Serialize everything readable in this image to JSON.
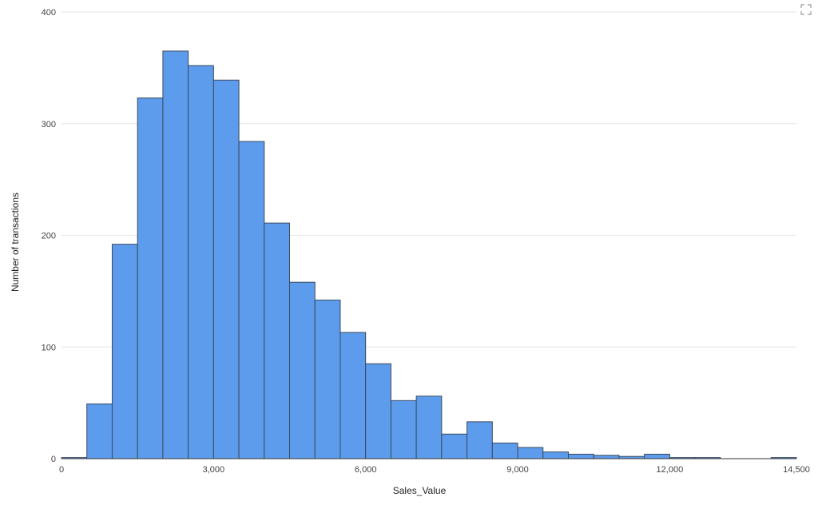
{
  "chart_data": {
    "type": "bar",
    "xlabel": "Sales_Value",
    "ylabel": "Number of transactions",
    "bin_width": 500,
    "xlim": [
      0,
      14500
    ],
    "ylim": [
      0,
      400
    ],
    "x_ticks": [
      0,
      3000,
      6000,
      9000,
      12000,
      14500
    ],
    "x_tick_labels": [
      "0",
      "3,000",
      "6,000",
      "9,000",
      "12,000",
      "14,500"
    ],
    "y_ticks": [
      0,
      100,
      200,
      300,
      400
    ],
    "y_tick_labels": [
      "0",
      "100",
      "200",
      "300",
      "400"
    ],
    "bins": [
      {
        "x0": 0,
        "x1": 500,
        "count": 1
      },
      {
        "x0": 500,
        "x1": 1000,
        "count": 49
      },
      {
        "x0": 1000,
        "x1": 1500,
        "count": 192
      },
      {
        "x0": 1500,
        "x1": 2000,
        "count": 323
      },
      {
        "x0": 2000,
        "x1": 2500,
        "count": 365
      },
      {
        "x0": 2500,
        "x1": 3000,
        "count": 352
      },
      {
        "x0": 3000,
        "x1": 3500,
        "count": 339
      },
      {
        "x0": 3500,
        "x1": 4000,
        "count": 284
      },
      {
        "x0": 4000,
        "x1": 4500,
        "count": 211
      },
      {
        "x0": 4500,
        "x1": 5000,
        "count": 158
      },
      {
        "x0": 5000,
        "x1": 5500,
        "count": 142
      },
      {
        "x0": 5500,
        "x1": 6000,
        "count": 113
      },
      {
        "x0": 6000,
        "x1": 6500,
        "count": 85
      },
      {
        "x0": 6500,
        "x1": 7000,
        "count": 52
      },
      {
        "x0": 7000,
        "x1": 7500,
        "count": 56
      },
      {
        "x0": 7500,
        "x1": 8000,
        "count": 22
      },
      {
        "x0": 8000,
        "x1": 8500,
        "count": 33
      },
      {
        "x0": 8500,
        "x1": 9000,
        "count": 14
      },
      {
        "x0": 9000,
        "x1": 9500,
        "count": 10
      },
      {
        "x0": 9500,
        "x1": 10000,
        "count": 6
      },
      {
        "x0": 10000,
        "x1": 10500,
        "count": 4
      },
      {
        "x0": 10500,
        "x1": 11000,
        "count": 3
      },
      {
        "x0": 11000,
        "x1": 11500,
        "count": 2
      },
      {
        "x0": 11500,
        "x1": 12000,
        "count": 4
      },
      {
        "x0": 12000,
        "x1": 12500,
        "count": 1
      },
      {
        "x0": 12500,
        "x1": 13000,
        "count": 1
      },
      {
        "x0": 13000,
        "x1": 13500,
        "count": 0
      },
      {
        "x0": 13500,
        "x1": 14000,
        "count": 0
      },
      {
        "x0": 14000,
        "x1": 14500,
        "count": 1
      }
    ],
    "bar_color": "#5d9cec",
    "bar_stroke": "#3a4a5e",
    "grid": true,
    "legend": "none"
  },
  "toolbar": {
    "expand_icon": "expand-icon"
  }
}
